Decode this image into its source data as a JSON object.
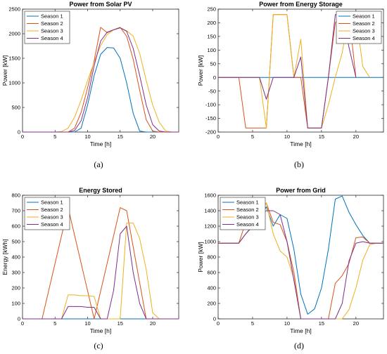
{
  "chart_data": [
    {
      "type": "line",
      "panel_label": "(a)",
      "title": "Power from Solar PV",
      "xlabel": "Time [h]",
      "ylabel": "Power [kW]",
      "xlim": [
        0,
        24
      ],
      "ylim": [
        0,
        2500
      ],
      "xticks": [
        0,
        5,
        10,
        15,
        20
      ],
      "yticks": [
        0,
        500,
        1000,
        1500,
        2000,
        2500
      ],
      "legend_position": "top-left",
      "series": [
        {
          "name": "Season 1",
          "color": "#0072BD",
          "x": [
            0,
            1,
            2,
            3,
            4,
            5,
            6,
            7,
            8,
            9,
            10,
            11,
            12,
            13,
            14,
            15,
            16,
            17,
            18,
            19,
            20,
            21,
            22,
            23,
            24
          ],
          "y": [
            0,
            0,
            0,
            0,
            0,
            0,
            0,
            0,
            0,
            80,
            550,
            1150,
            1580,
            1720,
            1710,
            1500,
            1000,
            380,
            20,
            0,
            0,
            0,
            0,
            0,
            0
          ]
        },
        {
          "name": "Season 2",
          "color": "#D95319",
          "x": [
            0,
            1,
            2,
            3,
            4,
            5,
            6,
            7,
            8,
            9,
            10,
            11,
            12,
            13,
            14,
            15,
            16,
            17,
            18,
            19,
            20,
            21,
            22,
            23,
            24
          ],
          "y": [
            0,
            0,
            0,
            0,
            0,
            0,
            0,
            0,
            80,
            400,
            900,
            1450,
            2130,
            2020,
            2080,
            2130,
            1950,
            1480,
            850,
            250,
            20,
            0,
            0,
            0,
            0
          ]
        },
        {
          "name": "Season 3",
          "color": "#EDB120",
          "x": [
            0,
            1,
            2,
            3,
            4,
            5,
            6,
            7,
            8,
            9,
            10,
            11,
            12,
            13,
            14,
            15,
            16,
            17,
            18,
            19,
            20,
            21,
            22,
            23,
            24
          ],
          "y": [
            0,
            0,
            0,
            0,
            0,
            0,
            10,
            80,
            300,
            650,
            1050,
            1420,
            1760,
            1980,
            2080,
            2120,
            2060,
            1950,
            1600,
            1050,
            550,
            200,
            20,
            0,
            0
          ]
        },
        {
          "name": "Season 4",
          "color": "#7E2F8E",
          "x": [
            0,
            1,
            2,
            3,
            4,
            5,
            6,
            7,
            8,
            9,
            10,
            11,
            12,
            13,
            14,
            15,
            16,
            17,
            18,
            19,
            20,
            21,
            22,
            23,
            24
          ],
          "y": [
            0,
            0,
            0,
            0,
            0,
            0,
            0,
            0,
            30,
            230,
            700,
            1350,
            1850,
            2030,
            2080,
            2120,
            2050,
            1700,
            1150,
            550,
            150,
            20,
            0,
            0,
            0
          ]
        }
      ]
    },
    {
      "type": "line",
      "panel_label": "(b)",
      "title": "Power from Energy Storage",
      "xlabel": "Time [h]",
      "ylabel": "Power [kW]",
      "xlim": [
        0,
        24
      ],
      "ylim": [
        -200,
        250
      ],
      "xticks": [
        0,
        5,
        10,
        15,
        20
      ],
      "yticks": [
        -200,
        -150,
        -100,
        -50,
        0,
        50,
        100,
        150,
        200,
        250
      ],
      "legend_position": "top-right",
      "series": [
        {
          "name": "Season 1",
          "color": "#0072BD",
          "x": [
            0,
            24
          ],
          "y": [
            0,
            0
          ]
        },
        {
          "name": "Season 2",
          "color": "#D95319",
          "x": [
            0,
            3,
            4,
            5,
            6,
            7,
            8,
            9,
            10,
            11,
            12,
            13,
            14,
            15,
            16,
            17,
            18,
            19,
            20
          ],
          "y": [
            0,
            0,
            -185,
            -185,
            -185,
            -185,
            230,
            230,
            230,
            0,
            0,
            -185,
            -185,
            -185,
            0,
            200,
            230,
            230,
            0
          ]
        },
        {
          "name": "Season 3",
          "color": "#EDB120",
          "x": [
            0,
            6,
            7,
            8,
            9,
            10,
            11,
            12,
            13,
            14,
            15,
            16,
            17,
            18,
            19,
            20,
            21,
            22
          ],
          "y": [
            0,
            0,
            -185,
            230,
            230,
            230,
            0,
            140,
            -185,
            -185,
            -185,
            -100,
            0,
            90,
            230,
            230,
            40,
            0
          ]
        },
        {
          "name": "Season 4",
          "color": "#7E2F8E",
          "x": [
            0,
            6,
            7,
            8,
            9,
            10,
            11,
            12,
            13,
            14,
            15,
            16,
            17,
            18,
            19,
            20
          ],
          "y": [
            0,
            0,
            -80,
            0,
            0,
            0,
            0,
            75,
            -185,
            -185,
            -185,
            0,
            230,
            230,
            110,
            0
          ]
        }
      ]
    },
    {
      "type": "line",
      "panel_label": "(c)",
      "title": "Energy Stored",
      "xlabel": "Time [h]",
      "ylabel": "Energy [kWh]",
      "xlim": [
        0,
        24
      ],
      "ylim": [
        0,
        800
      ],
      "xticks": [
        0,
        5,
        10,
        15,
        20
      ],
      "yticks": [
        0,
        100,
        200,
        300,
        400,
        500,
        600,
        700,
        800
      ],
      "legend_position": "top-left",
      "series": [
        {
          "name": "Season 1",
          "color": "#0072BD",
          "x": [
            0,
            24
          ],
          "y": [
            0,
            0
          ]
        },
        {
          "name": "Season 2",
          "color": "#D95319",
          "x": [
            0,
            3,
            7,
            11,
            15,
            16,
            19,
            20,
            24
          ],
          "y": [
            0,
            0,
            720,
            0,
            720,
            700,
            0,
            0,
            0
          ]
        },
        {
          "name": "Season 3",
          "color": "#EDB120",
          "x": [
            0,
            6,
            7,
            8,
            9,
            10,
            11,
            12,
            13,
            14,
            15,
            16,
            17,
            18,
            19,
            20,
            21,
            24
          ],
          "y": [
            0,
            0,
            155,
            155,
            150,
            150,
            145,
            0,
            0,
            0,
            0,
            620,
            620,
            520,
            320,
            40,
            0,
            0
          ]
        },
        {
          "name": "Season 4",
          "color": "#7E2F8E",
          "x": [
            0,
            6,
            7,
            8,
            9,
            10,
            11,
            12,
            13,
            14,
            15,
            16,
            17,
            18,
            19,
            24
          ],
          "y": [
            0,
            0,
            80,
            80,
            80,
            75,
            75,
            0,
            0,
            185,
            550,
            600,
            300,
            100,
            0,
            0
          ]
        }
      ]
    },
    {
      "type": "line",
      "panel_label": "(d)",
      "title": "Power from Grid",
      "xlabel": "Time [h]",
      "ylabel": "Power [kW]",
      "xlim": [
        0,
        24
      ],
      "ylim": [
        0,
        1600
      ],
      "xticks": [
        0,
        5,
        10,
        15,
        20
      ],
      "yticks": [
        0,
        200,
        400,
        600,
        800,
        1000,
        1200,
        1400,
        1600
      ],
      "legend_position": "top-left",
      "series": [
        {
          "name": "Season 1",
          "color": "#0072BD",
          "x": [
            0,
            1,
            2,
            3,
            4,
            5,
            6,
            7,
            8,
            9,
            10,
            11,
            12,
            13,
            14,
            15,
            16,
            17,
            18,
            19,
            20,
            21,
            22,
            23,
            24
          ],
          "y": [
            980,
            980,
            980,
            980,
            1100,
            1200,
            1300,
            1450,
            1200,
            1350,
            1300,
            900,
            320,
            60,
            130,
            400,
            900,
            1550,
            1590,
            1380,
            1220,
            1080,
            980,
            980,
            980
          ]
        },
        {
          "name": "Season 2",
          "color": "#D95319",
          "x": [
            0,
            1,
            2,
            3,
            4,
            5,
            6,
            7,
            8,
            9,
            10,
            11,
            12,
            13,
            14,
            15,
            16,
            17,
            18,
            19,
            20,
            21,
            22,
            23,
            24
          ],
          "y": [
            980,
            980,
            980,
            980,
            1250,
            1250,
            1400,
            1500,
            1250,
            1220,
            1000,
            600,
            0,
            0,
            0,
            0,
            0,
            460,
            560,
            720,
            1050,
            1060,
            980,
            980,
            980
          ]
        },
        {
          "name": "Season 3",
          "color": "#EDB120",
          "x": [
            0,
            1,
            2,
            3,
            4,
            5,
            6,
            7,
            8,
            9,
            10,
            11,
            12,
            13,
            14,
            15,
            16,
            17,
            18,
            19,
            20,
            21,
            22,
            23,
            24
          ],
          "y": [
            980,
            980,
            980,
            980,
            1100,
            1200,
            1350,
            1500,
            1100,
            880,
            800,
            520,
            0,
            0,
            0,
            0,
            0,
            0,
            0,
            120,
            400,
            760,
            960,
            980,
            980
          ]
        },
        {
          "name": "Season 4",
          "color": "#7E2F8E",
          "x": [
            0,
            1,
            2,
            3,
            4,
            5,
            6,
            7,
            8,
            9,
            10,
            11,
            12,
            13,
            14,
            15,
            16,
            17,
            18,
            19,
            20,
            21,
            22,
            23,
            24
          ],
          "y": [
            980,
            980,
            980,
            980,
            1100,
            1200,
            1350,
            1400,
            1400,
            1350,
            1000,
            500,
            0,
            0,
            0,
            0,
            0,
            0,
            200,
            750,
            980,
            1000,
            980,
            980,
            980
          ]
        }
      ]
    }
  ]
}
